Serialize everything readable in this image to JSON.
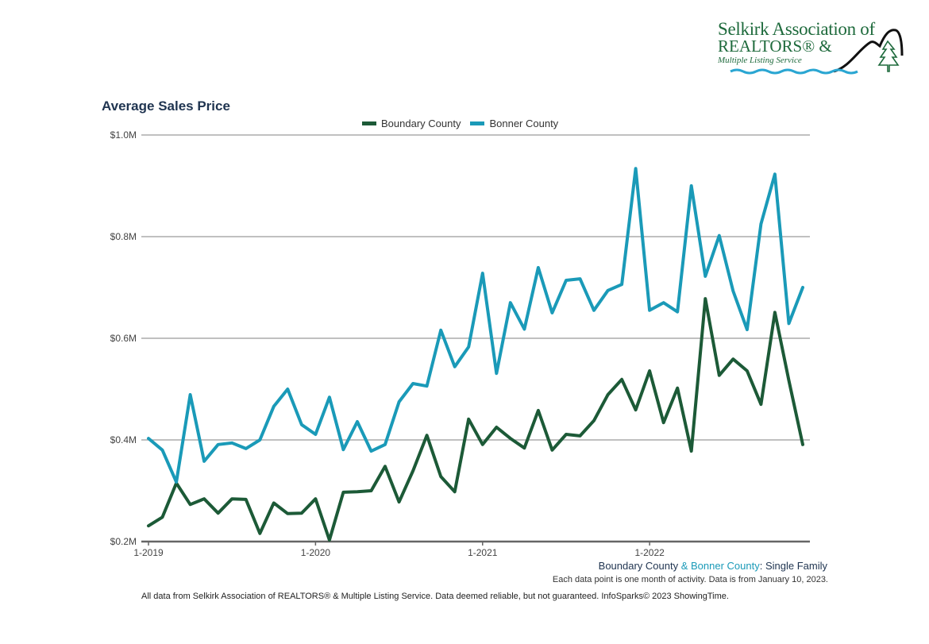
{
  "logo": {
    "line1": "Selkirk Association of",
    "line2": "REALTORS® &",
    "line3": "Multiple Listing Service"
  },
  "colors": {
    "boundary": "#1c5a37",
    "bonner": "#1a9ab8",
    "title": "#1f3450",
    "grid": "#9a9a9a",
    "axis": "#666666"
  },
  "subtitle": {
    "boundary": "Boundary County",
    "amp": " & ",
    "bonner": "Bonner County",
    "rest": ": Single Family"
  },
  "note": "Each data point is one month of activity. Data is from January 10, 2023.",
  "footer": "All data from Selkirk Association of REALTORS® & Multiple Listing Service. Data deemed reliable, but not guaranteed. InfoSparks© 2023 ShowingTime.",
  "chart_data": {
    "type": "line",
    "title": "Average Sales Price",
    "xlabel": "",
    "ylabel": "",
    "ylim": [
      0.2,
      1.0
    ],
    "y_unit": "$M",
    "yticks": [
      0.2,
      0.4,
      0.6,
      0.8,
      1.0
    ],
    "ytick_labels": [
      "$0.2M",
      "$0.4M",
      "$0.6M",
      "$0.8M",
      "$1.0M"
    ],
    "xtick_labels": [
      "1-2019",
      "1-2020",
      "1-2021",
      "1-2022"
    ],
    "xtick_indices": [
      0,
      12,
      24,
      36
    ],
    "grid": true,
    "legend_position": "top-center",
    "x": [
      "1-2019",
      "2-2019",
      "3-2019",
      "4-2019",
      "5-2019",
      "6-2019",
      "7-2019",
      "8-2019",
      "9-2019",
      "10-2019",
      "11-2019",
      "12-2019",
      "1-2020",
      "2-2020",
      "3-2020",
      "4-2020",
      "5-2020",
      "6-2020",
      "7-2020",
      "8-2020",
      "9-2020",
      "10-2020",
      "11-2020",
      "12-2020",
      "1-2021",
      "2-2021",
      "3-2021",
      "4-2021",
      "5-2021",
      "6-2021",
      "7-2021",
      "8-2021",
      "9-2021",
      "10-2021",
      "11-2021",
      "12-2021",
      "1-2022",
      "2-2022",
      "3-2022",
      "4-2022",
      "5-2022",
      "6-2022",
      "7-2022",
      "8-2022",
      "9-2022",
      "10-2022",
      "11-2022",
      "12-2022"
    ],
    "series": [
      {
        "name": "Boundary County",
        "color": "#1c5a37",
        "values": [
          0.231,
          0.248,
          0.315,
          0.273,
          0.284,
          0.256,
          0.284,
          0.283,
          0.216,
          0.276,
          0.255,
          0.256,
          0.284,
          0.203,
          0.297,
          0.298,
          0.3,
          0.348,
          0.278,
          0.339,
          0.409,
          0.328,
          0.298,
          0.441,
          0.391,
          0.425,
          0.403,
          0.384,
          0.458,
          0.38,
          0.411,
          0.408,
          0.438,
          0.489,
          0.519,
          0.459,
          0.536,
          0.434,
          0.502,
          0.378,
          0.678,
          0.527,
          0.559,
          0.536,
          0.47,
          0.651,
          0.517,
          0.391
        ]
      },
      {
        "name": "Bonner County",
        "color": "#1a9ab8",
        "values": [
          0.403,
          0.38,
          0.317,
          0.489,
          0.358,
          0.391,
          0.394,
          0.383,
          0.4,
          0.466,
          0.5,
          0.43,
          0.411,
          0.484,
          0.381,
          0.436,
          0.378,
          0.391,
          0.475,
          0.511,
          0.506,
          0.616,
          0.544,
          0.583,
          0.728,
          0.531,
          0.67,
          0.618,
          0.739,
          0.65,
          0.714,
          0.717,
          0.655,
          0.694,
          0.706,
          0.934,
          0.655,
          0.67,
          0.652,
          0.9,
          0.722,
          0.802,
          0.693,
          0.617,
          0.825,
          0.923,
          0.629,
          0.7
        ]
      }
    ]
  }
}
